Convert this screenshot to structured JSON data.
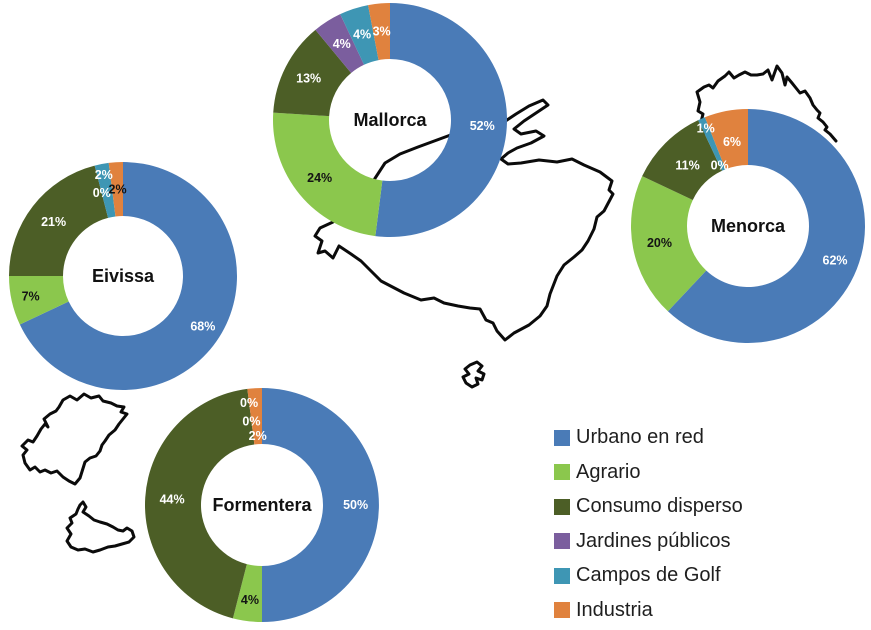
{
  "chart_data": {
    "type": "pie",
    "subtype": "four-donut-small-multiples-over-map",
    "title": "",
    "unit": "%",
    "categories": [
      "Urbano en red",
      "Agrario",
      "Consumo disperso",
      "Jardines públicos",
      "Campos de Golf",
      "Industria"
    ],
    "colors": [
      "#4A7BB7",
      "#8BC74D",
      "#4C5E26",
      "#7B5E9E",
      "#3E96B4",
      "#E0823E"
    ],
    "islands": [
      {
        "name": "Mallorca",
        "values": [
          52,
          24,
          13,
          4,
          4,
          3
        ]
      },
      {
        "name": "Menorca",
        "values": [
          62,
          20,
          11,
          0,
          1,
          6
        ]
      },
      {
        "name": "Eivissa",
        "values": [
          68,
          7,
          21,
          0,
          2,
          2
        ]
      },
      {
        "name": "Formentera",
        "values": [
          50,
          4,
          44,
          0,
          0,
          2
        ]
      }
    ],
    "legend_position": "bottom-right",
    "start_angle": "12-oclock-clockwise",
    "background": "#FFFFFF"
  },
  "legend": {
    "items": [
      {
        "label": "Urbano en red",
        "color": "#4A7BB7"
      },
      {
        "label": "Agrario",
        "color": "#8BC74D"
      },
      {
        "label": "Consumo disperso",
        "color": "#4C5E26"
      },
      {
        "label": "Jardines públicos",
        "color": "#7B5E9E"
      },
      {
        "label": "Campos de Golf",
        "color": "#3E96B4"
      },
      {
        "label": "Industria",
        "color": "#E0823E"
      }
    ]
  }
}
